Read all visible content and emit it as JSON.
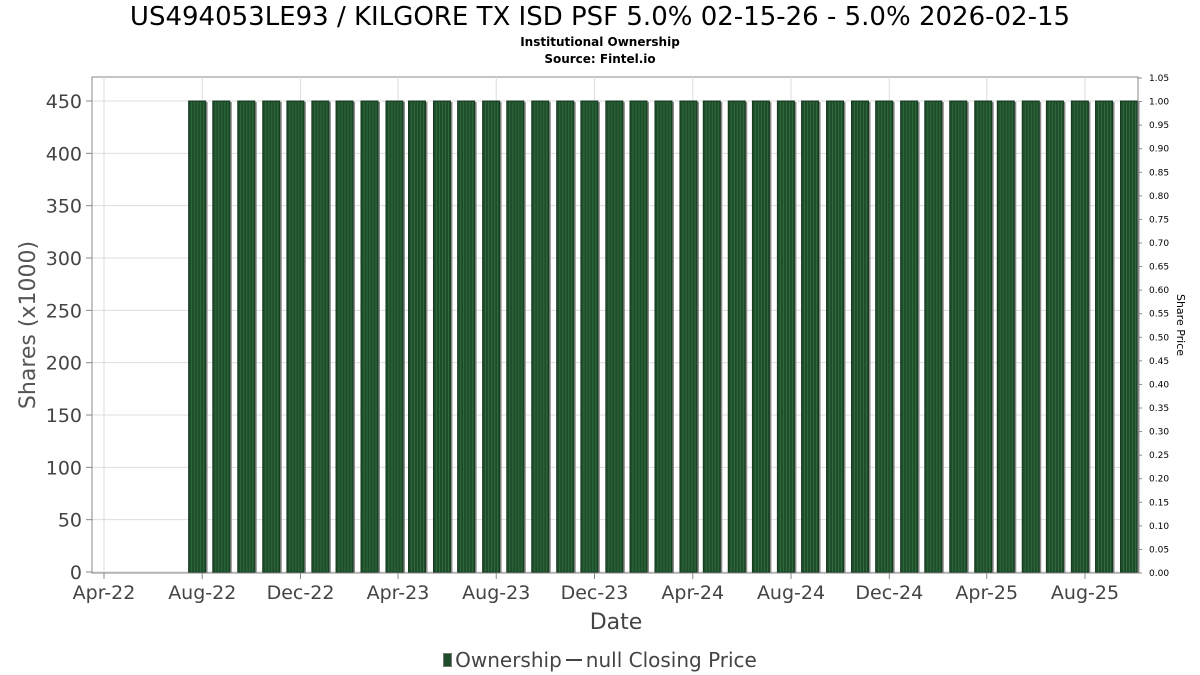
{
  "header": {
    "title": "US494053LE93 / KILGORE TX ISD PSF 5.0% 02-15-26 - 5.0% 2026-02-15",
    "subtitle_1": "Institutional Ownership",
    "subtitle_2": "Source: Fintel.io"
  },
  "legend": {
    "ownership_label": "Ownership",
    "price_label": "null Closing Price"
  },
  "colors": {
    "bar_fill": "#1f4d2b",
    "bar_stripe": "#2e6b3c",
    "bar_shadow": "#8a8a8a",
    "grid": "#dddddd",
    "axis": "#888888"
  },
  "chart_data": {
    "type": "bar",
    "xlabel": "Date",
    "ylabel": "Shares (x1000)",
    "y2label": "Share Price",
    "ylim": [
      0,
      470
    ],
    "y2lim": [
      0,
      1.05
    ],
    "y_ticks": [
      0,
      50,
      100,
      150,
      200,
      250,
      300,
      350,
      400,
      450
    ],
    "y2_ticks": [
      "0.00",
      "0.05",
      "0.10",
      "0.15",
      "0.20",
      "0.25",
      "0.30",
      "0.35",
      "0.40",
      "0.45",
      "0.50",
      "0.55",
      "0.60",
      "0.65",
      "0.70",
      "0.75",
      "0.80",
      "0.85",
      "0.90",
      "0.95",
      "1.00",
      "1.05"
    ],
    "x_range": [
      "2022-03-20",
      "2025-10-10"
    ],
    "x_ticks": [
      {
        "label": "Apr-22",
        "date": "2022-04-01"
      },
      {
        "label": "Aug-22",
        "date": "2022-08-01"
      },
      {
        "label": "Dec-22",
        "date": "2022-12-01"
      },
      {
        "label": "Apr-23",
        "date": "2023-04-01"
      },
      {
        "label": "Aug-23",
        "date": "2023-08-01"
      },
      {
        "label": "Dec-23",
        "date": "2023-12-01"
      },
      {
        "label": "Apr-24",
        "date": "2024-04-01"
      },
      {
        "label": "Aug-24",
        "date": "2024-08-01"
      },
      {
        "label": "Dec-24",
        "date": "2024-12-01"
      },
      {
        "label": "Apr-25",
        "date": "2025-04-01"
      },
      {
        "label": "Aug-25",
        "date": "2025-08-01"
      }
    ],
    "grid": true,
    "legend_position": "bottom",
    "series": [
      {
        "name": "Ownership",
        "x": [
          "2022-06-01",
          "2022-07-01",
          "2022-08-01",
          "2022-09-01",
          "2022-10-01",
          "2022-11-01",
          "2022-12-01",
          "2023-01-01",
          "2023-02-01",
          "2023-03-01",
          "2023-04-01",
          "2023-05-01",
          "2023-06-01",
          "2023-07-01",
          "2023-08-01",
          "2023-09-01",
          "2023-10-01",
          "2023-11-01",
          "2023-12-01",
          "2024-01-01",
          "2024-02-01",
          "2024-03-01",
          "2024-04-01",
          "2024-05-01",
          "2024-06-01",
          "2024-07-01",
          "2024-08-01",
          "2024-09-01",
          "2024-10-01",
          "2024-11-01",
          "2024-12-01",
          "2025-01-01",
          "2025-02-01",
          "2025-03-01",
          "2025-04-01",
          "2025-05-01",
          "2025-06-01",
          "2025-07-01",
          "2025-08-01"
        ],
        "values": [
          450,
          450,
          450,
          450,
          450,
          450,
          450,
          450,
          450,
          450,
          450,
          450,
          450,
          450,
          450,
          450,
          450,
          450,
          450,
          450,
          450,
          450,
          450,
          450,
          450,
          450,
          450,
          450,
          450,
          450,
          450,
          450,
          450,
          450,
          450,
          450,
          450,
          450,
          450
        ]
      },
      {
        "name": "null Closing Price",
        "x": [],
        "values": []
      }
    ]
  }
}
